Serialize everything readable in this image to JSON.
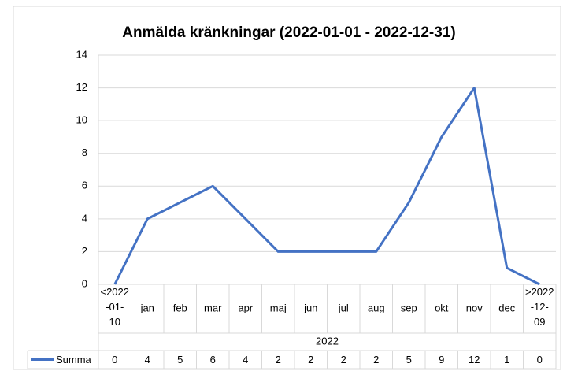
{
  "chart_data": {
    "type": "line",
    "title": "Anmälda kränkningar (2022-01-01 - 2022-12-31)",
    "categories": [
      "<2022-01-10",
      "jan",
      "feb",
      "mar",
      "apr",
      "maj",
      "jun",
      "jul",
      "aug",
      "sep",
      "okt",
      "nov",
      "dec",
      ">2022-12-09"
    ],
    "category_group": "2022",
    "series": [
      {
        "name": "Summa",
        "color": "#4472c4",
        "values": [
          0,
          4,
          5,
          6,
          4,
          2,
          2,
          2,
          2,
          5,
          9,
          12,
          1,
          0
        ]
      }
    ],
    "ylim": [
      0,
      14
    ],
    "yticks": [
      0,
      2,
      4,
      6,
      8,
      10,
      12,
      14
    ],
    "grid": true,
    "legend": "data-table"
  }
}
